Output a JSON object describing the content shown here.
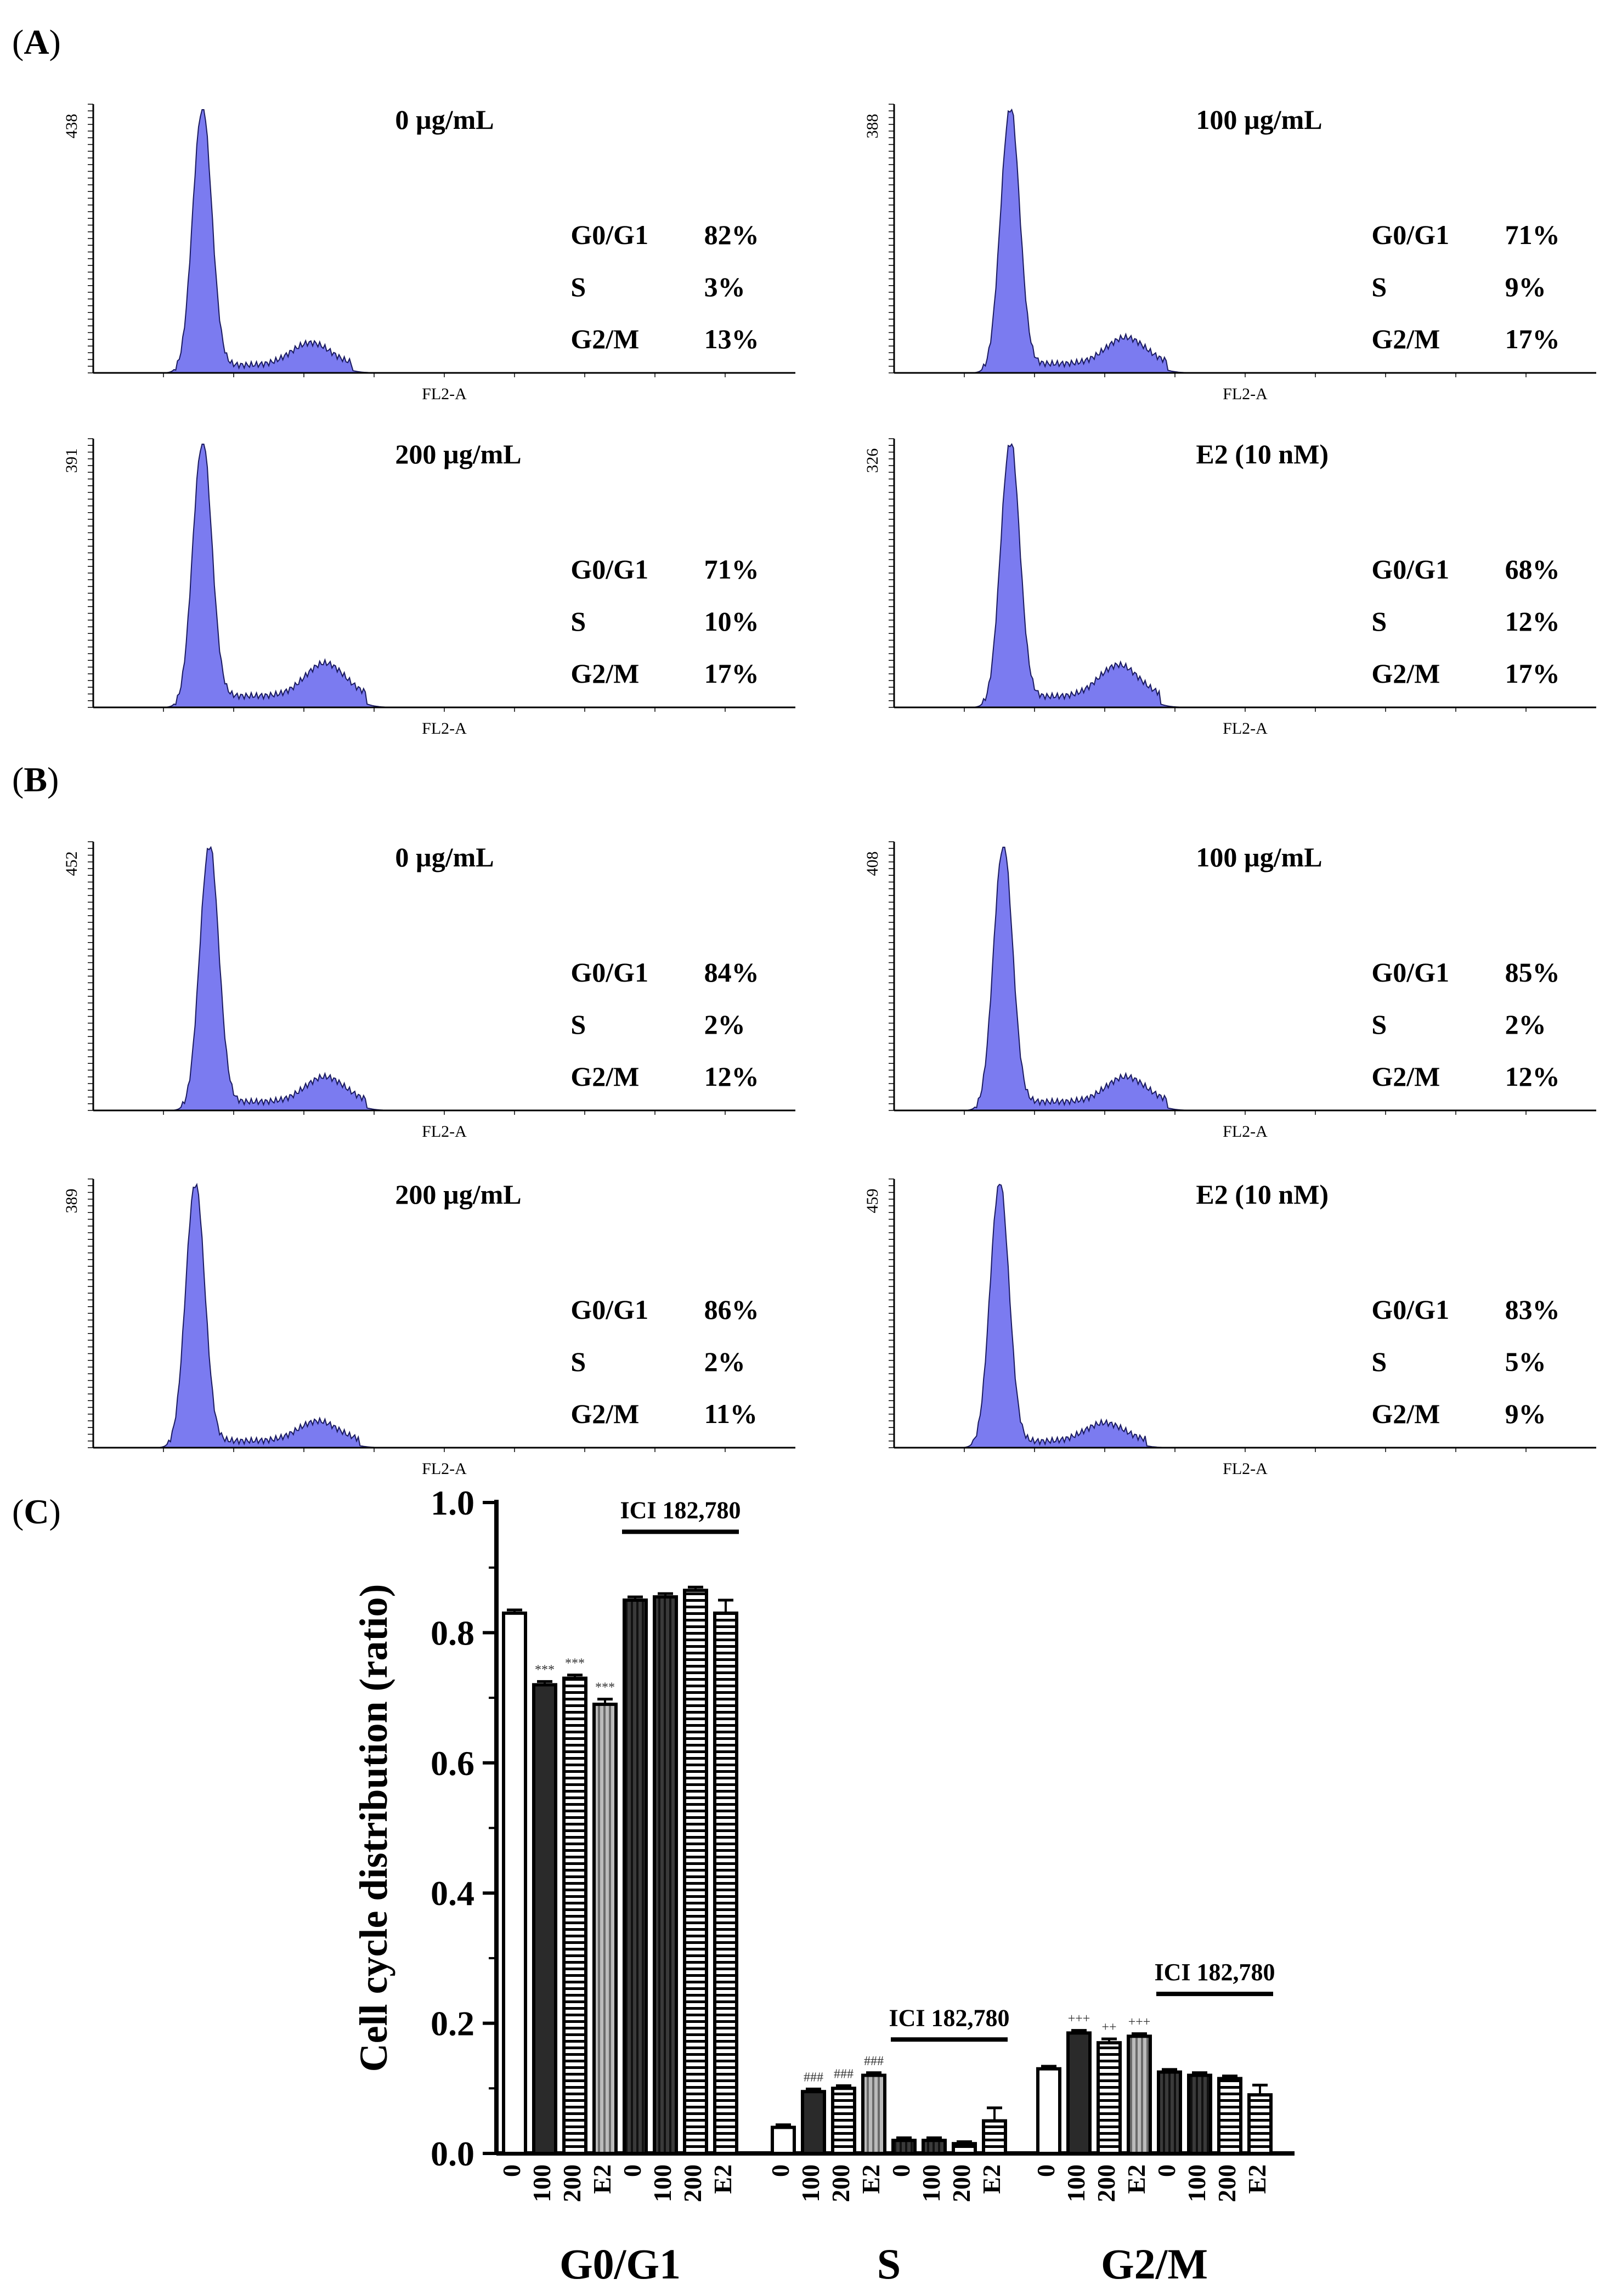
{
  "panels": {
    "A": {
      "label": "A"
    },
    "B": {
      "label": "B"
    },
    "C": {
      "label": "C"
    }
  },
  "histogram_x_label": "FL2-A",
  "phase_labels": {
    "g0g1": "G0/G1",
    "s": "S",
    "g2m": "G2/M"
  },
  "chart_data": [
    {
      "type": "area",
      "panel": "A",
      "title": "0 µg/mL",
      "y_max": "438",
      "xlabel": "FL2-A",
      "stats": {
        "g0g1": "82%",
        "s": "3%",
        "g2m": "13%"
      },
      "peaks": {
        "g1_position": 0.155,
        "g1_height": 1.0,
        "g2_position": 0.31,
        "g2_height": 0.085
      }
    },
    {
      "type": "area",
      "panel": "A",
      "title": "100 µg/mL",
      "y_max": "388",
      "xlabel": "FL2-A",
      "stats": {
        "g0g1": "71%",
        "s": "9%",
        "g2m": "17%"
      },
      "peaks": {
        "g1_position": 0.165,
        "g1_height": 1.0,
        "g2_position": 0.33,
        "g2_height": 0.1
      }
    },
    {
      "type": "area",
      "panel": "A",
      "title": "200 µg/mL",
      "y_max": "391",
      "xlabel": "FL2-A",
      "stats": {
        "g0g1": "71%",
        "s": "10%",
        "g2m": "17%"
      },
      "peaks": {
        "g1_position": 0.155,
        "g1_height": 1.0,
        "g2_position": 0.33,
        "g2_height": 0.125
      }
    },
    {
      "type": "area",
      "panel": "A",
      "title": "E2 (10 nM)",
      "y_max": "326",
      "xlabel": "FL2-A",
      "stats": {
        "g0g1": "68%",
        "s": "12%",
        "g2m": "17%"
      },
      "peaks": {
        "g1_position": 0.165,
        "g1_height": 1.0,
        "g2_position": 0.32,
        "g2_height": 0.12
      }
    },
    {
      "type": "area",
      "panel": "B",
      "title": "0 µg/mL",
      "y_max": "452",
      "xlabel": "FL2-A",
      "stats": {
        "g0g1": "84%",
        "s": "2%",
        "g2m": "12%"
      },
      "peaks": {
        "g1_position": 0.165,
        "g1_height": 1.0,
        "g2_position": 0.33,
        "g2_height": 0.095
      }
    },
    {
      "type": "area",
      "panel": "B",
      "title": "100 µg/mL",
      "y_max": "408",
      "xlabel": "FL2-A",
      "stats": {
        "g0g1": "85%",
        "s": "2%",
        "g2m": "12%"
      },
      "peaks": {
        "g1_position": 0.155,
        "g1_height": 1.0,
        "g2_position": 0.33,
        "g2_height": 0.095
      }
    },
    {
      "type": "area",
      "panel": "B",
      "title": "200 µg/mL",
      "y_max": "389",
      "xlabel": "FL2-A",
      "stats": {
        "g0g1": "86%",
        "s": "2%",
        "g2m": "11%"
      },
      "peaks": {
        "g1_position": 0.145,
        "g1_height": 1.0,
        "g2_position": 0.32,
        "g2_height": 0.075
      }
    },
    {
      "type": "area",
      "panel": "B",
      "title": "E2 (10 nM)",
      "y_max": "459",
      "xlabel": "FL2-A",
      "stats": {
        "g0g1": "83%",
        "s": "5%",
        "g2m": "9%"
      },
      "peaks": {
        "g1_position": 0.15,
        "g1_height": 1.0,
        "g2_position": 0.3,
        "g2_height": 0.07
      }
    },
    {
      "type": "bar",
      "panel": "C",
      "ylabel": "Cell cycle distribution (ratio)",
      "ylim": [
        0,
        1.0
      ],
      "yticks": [
        "0.0",
        "0.2",
        "0.4",
        "0.6",
        "0.8",
        "1.0"
      ],
      "bracket_label": "ICI 182,780",
      "groups": [
        {
          "name": "G0/G1",
          "bars": [
            {
              "label": "0",
              "value": 0.83,
              "err": 0.005,
              "style": "white",
              "sig": ""
            },
            {
              "label": "100",
              "value": 0.72,
              "err": 0.005,
              "style": "black",
              "sig": "***"
            },
            {
              "label": "200",
              "value": 0.73,
              "err": 0.005,
              "style": "hstripe",
              "sig": "***"
            },
            {
              "label": "E2",
              "value": 0.69,
              "err": 0.008,
              "style": "vstripe",
              "sig": "***"
            },
            {
              "label": "0",
              "value": 0.85,
              "err": 0.005,
              "style": "vstripe-dark",
              "sig": ""
            },
            {
              "label": "100",
              "value": 0.855,
              "err": 0.005,
              "style": "vstripe-dark",
              "sig": ""
            },
            {
              "label": "200",
              "value": 0.865,
              "err": 0.005,
              "style": "hstripe",
              "sig": ""
            },
            {
              "label": "E2",
              "value": 0.83,
              "err": 0.02,
              "style": "hstripe",
              "sig": ""
            }
          ]
        },
        {
          "name": "S",
          "bars": [
            {
              "label": "0",
              "value": 0.04,
              "err": 0.004,
              "style": "white",
              "sig": ""
            },
            {
              "label": "100",
              "value": 0.095,
              "err": 0.004,
              "style": "black",
              "sig": "###"
            },
            {
              "label": "200",
              "value": 0.1,
              "err": 0.004,
              "style": "hstripe",
              "sig": "###"
            },
            {
              "label": "E2",
              "value": 0.12,
              "err": 0.004,
              "style": "vstripe",
              "sig": "###"
            },
            {
              "label": "0",
              "value": 0.02,
              "err": 0.004,
              "style": "vstripe-dark",
              "sig": ""
            },
            {
              "label": "100",
              "value": 0.02,
              "err": 0.004,
              "style": "vstripe-dark",
              "sig": ""
            },
            {
              "label": "200",
              "value": 0.015,
              "err": 0.003,
              "style": "hstripe",
              "sig": ""
            },
            {
              "label": "E2",
              "value": 0.05,
              "err": 0.02,
              "style": "hstripe",
              "sig": ""
            }
          ]
        },
        {
          "name": "G2/M",
          "bars": [
            {
              "label": "0",
              "value": 0.13,
              "err": 0.004,
              "style": "white",
              "sig": ""
            },
            {
              "label": "100",
              "value": 0.185,
              "err": 0.004,
              "style": "black",
              "sig": "+++"
            },
            {
              "label": "200",
              "value": 0.17,
              "err": 0.006,
              "style": "hstripe",
              "sig": "++"
            },
            {
              "label": "E2",
              "value": 0.18,
              "err": 0.004,
              "style": "vstripe",
              "sig": "+++"
            },
            {
              "label": "0",
              "value": 0.125,
              "err": 0.004,
              "style": "vstripe-dark",
              "sig": ""
            },
            {
              "label": "100",
              "value": 0.12,
              "err": 0.004,
              "style": "vstripe-dark",
              "sig": ""
            },
            {
              "label": "200",
              "value": 0.115,
              "err": 0.004,
              "style": "hstripe",
              "sig": ""
            },
            {
              "label": "E2",
              "value": 0.09,
              "err": 0.015,
              "style": "hstripe",
              "sig": ""
            }
          ]
        }
      ]
    }
  ],
  "colors": {
    "histogram_fill": "#7b7bf0",
    "histogram_stroke": "#1a1a60",
    "axis": "#000000"
  }
}
